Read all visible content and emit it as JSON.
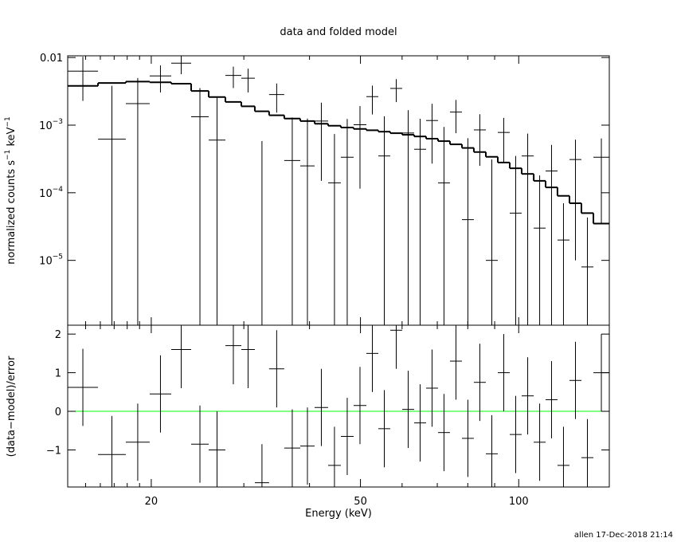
{
  "chart_data": {
    "type": "spectrum",
    "title": "data and folded model",
    "xlabel": "Energy (keV)",
    "ylabel_parts": [
      "normalized counts s",
      "−1",
      " keV",
      "−1"
    ],
    "residual_ylabel": "(data−model)/error",
    "footer": "allen 17-Dec-2018 21:14",
    "xscale": "log",
    "xlim": [
      13.87,
      148.7
    ],
    "xticks": [
      20,
      50,
      100
    ],
    "xminor_ticks": [
      15,
      16,
      17,
      18,
      19,
      30,
      40,
      60,
      70,
      80,
      90
    ],
    "yscale": "log",
    "ylim": [
      1.1e-06,
      0.0106
    ],
    "yticks": [
      0.01,
      {
        "value": 0.001,
        "label": "10",
        "sup": "−3"
      },
      {
        "value": 0.0001,
        "label": "10",
        "sup": "−4"
      },
      {
        "value": 1e-05,
        "label": "10",
        "sup": "−5"
      }
    ],
    "residual_ylim": [
      -1.96,
      2.23
    ],
    "residual_yticks": [
      {
        "value": -1,
        "label": "−1"
      },
      0,
      1,
      2
    ],
    "reference_line": {
      "value": 0,
      "color": "#00ff00"
    },
    "color": "#000000",
    "bins": [
      13.87,
      15.84,
      17.89,
      19.86,
      21.83,
      23.82,
      25.72,
      27.67,
      29.67,
      31.48,
      33.51,
      35.81,
      38.41,
      40.9,
      43.39,
      45.88,
      48.52,
      51.31,
      54.07,
      56.97,
      60.03,
      63.25,
      66.65,
      70.22,
      74.0,
      77.98,
      82.16,
      86.59,
      91.24,
      96.14,
      101.3,
      106.8,
      112.5,
      118.5,
      124.9,
      131.6,
      138.7,
      148.7
    ],
    "rate": [
      0.00628,
      0.00062,
      0.00208,
      0.00534,
      0.00826,
      0.00133,
      0.0006,
      0.00543,
      0.00494,
      -0.00062,
      0.00283,
      0.0003,
      0.00025,
      0.00115,
      0.00014,
      0.000335,
      0.001015,
      0.00264,
      0.00035,
      0.00349,
      0.000765,
      0.00044,
      0.00117,
      0.00014,
      0.00156,
      4e-05,
      0.00085,
      1e-05,
      0.00078,
      5e-05,
      0.00035,
      3e-05,
      0.00021,
      2e-05,
      0.00031,
      8e-06,
      0.000335
    ],
    "rate_err": [
      0.004,
      0.0032,
      0.0029,
      0.0023,
      0.0026,
      0.0022,
      0.002,
      0.0019,
      0.0019,
      0.0012,
      0.0013,
      0.001,
      0.001,
      0.001,
      0.0006,
      0.0009,
      0.0009,
      0.0012,
      0.001,
      0.0013,
      0.0009,
      0.0008,
      0.0009,
      0.0008,
      0.0008,
      0.0006,
      0.0006,
      0.0003,
      0.0005,
      0.0003,
      0.0004,
      0.00015,
      0.0003,
      5e-05,
      0.0003,
      3.5e-05,
      0.0003
    ],
    "model": [
      0.0038,
      0.0042,
      0.0044,
      0.0043,
      0.0041,
      0.0032,
      0.0026,
      0.0022,
      0.0019,
      0.0016,
      0.0014,
      0.00125,
      0.00115,
      0.00105,
      0.00098,
      0.00092,
      0.00088,
      0.00084,
      0.0008,
      0.00076,
      0.00072,
      0.00068,
      0.00063,
      0.00058,
      0.00052,
      0.00046,
      0.0004,
      0.00034,
      0.00028,
      0.00023,
      0.00019,
      0.00015,
      0.00012,
      9e-05,
      7e-05,
      5e-05,
      3.5e-05
    ],
    "residual": [
      0.62,
      -1.12,
      -0.8,
      0.45,
      1.6,
      -0.85,
      -1.0,
      1.7,
      1.6,
      -1.85,
      1.1,
      -0.95,
      -0.9,
      0.1,
      -1.4,
      -0.65,
      0.15,
      1.5,
      -0.45,
      2.1,
      0.05,
      -0.3,
      0.6,
      -0.55,
      1.3,
      -0.7,
      0.75,
      -1.1,
      1.0,
      -0.6,
      0.4,
      -0.8,
      0.3,
      -1.4,
      0.8,
      -1.2,
      1.0
    ],
    "residual_err": [
      1,
      1,
      1,
      1,
      1,
      1,
      1,
      1,
      1,
      1,
      1,
      1,
      1,
      1,
      1,
      1,
      1,
      1,
      1,
      1,
      1,
      1,
      1,
      1,
      1,
      1,
      1,
      1,
      1,
      1,
      1,
      1,
      1,
      1,
      1,
      1,
      1
    ]
  }
}
